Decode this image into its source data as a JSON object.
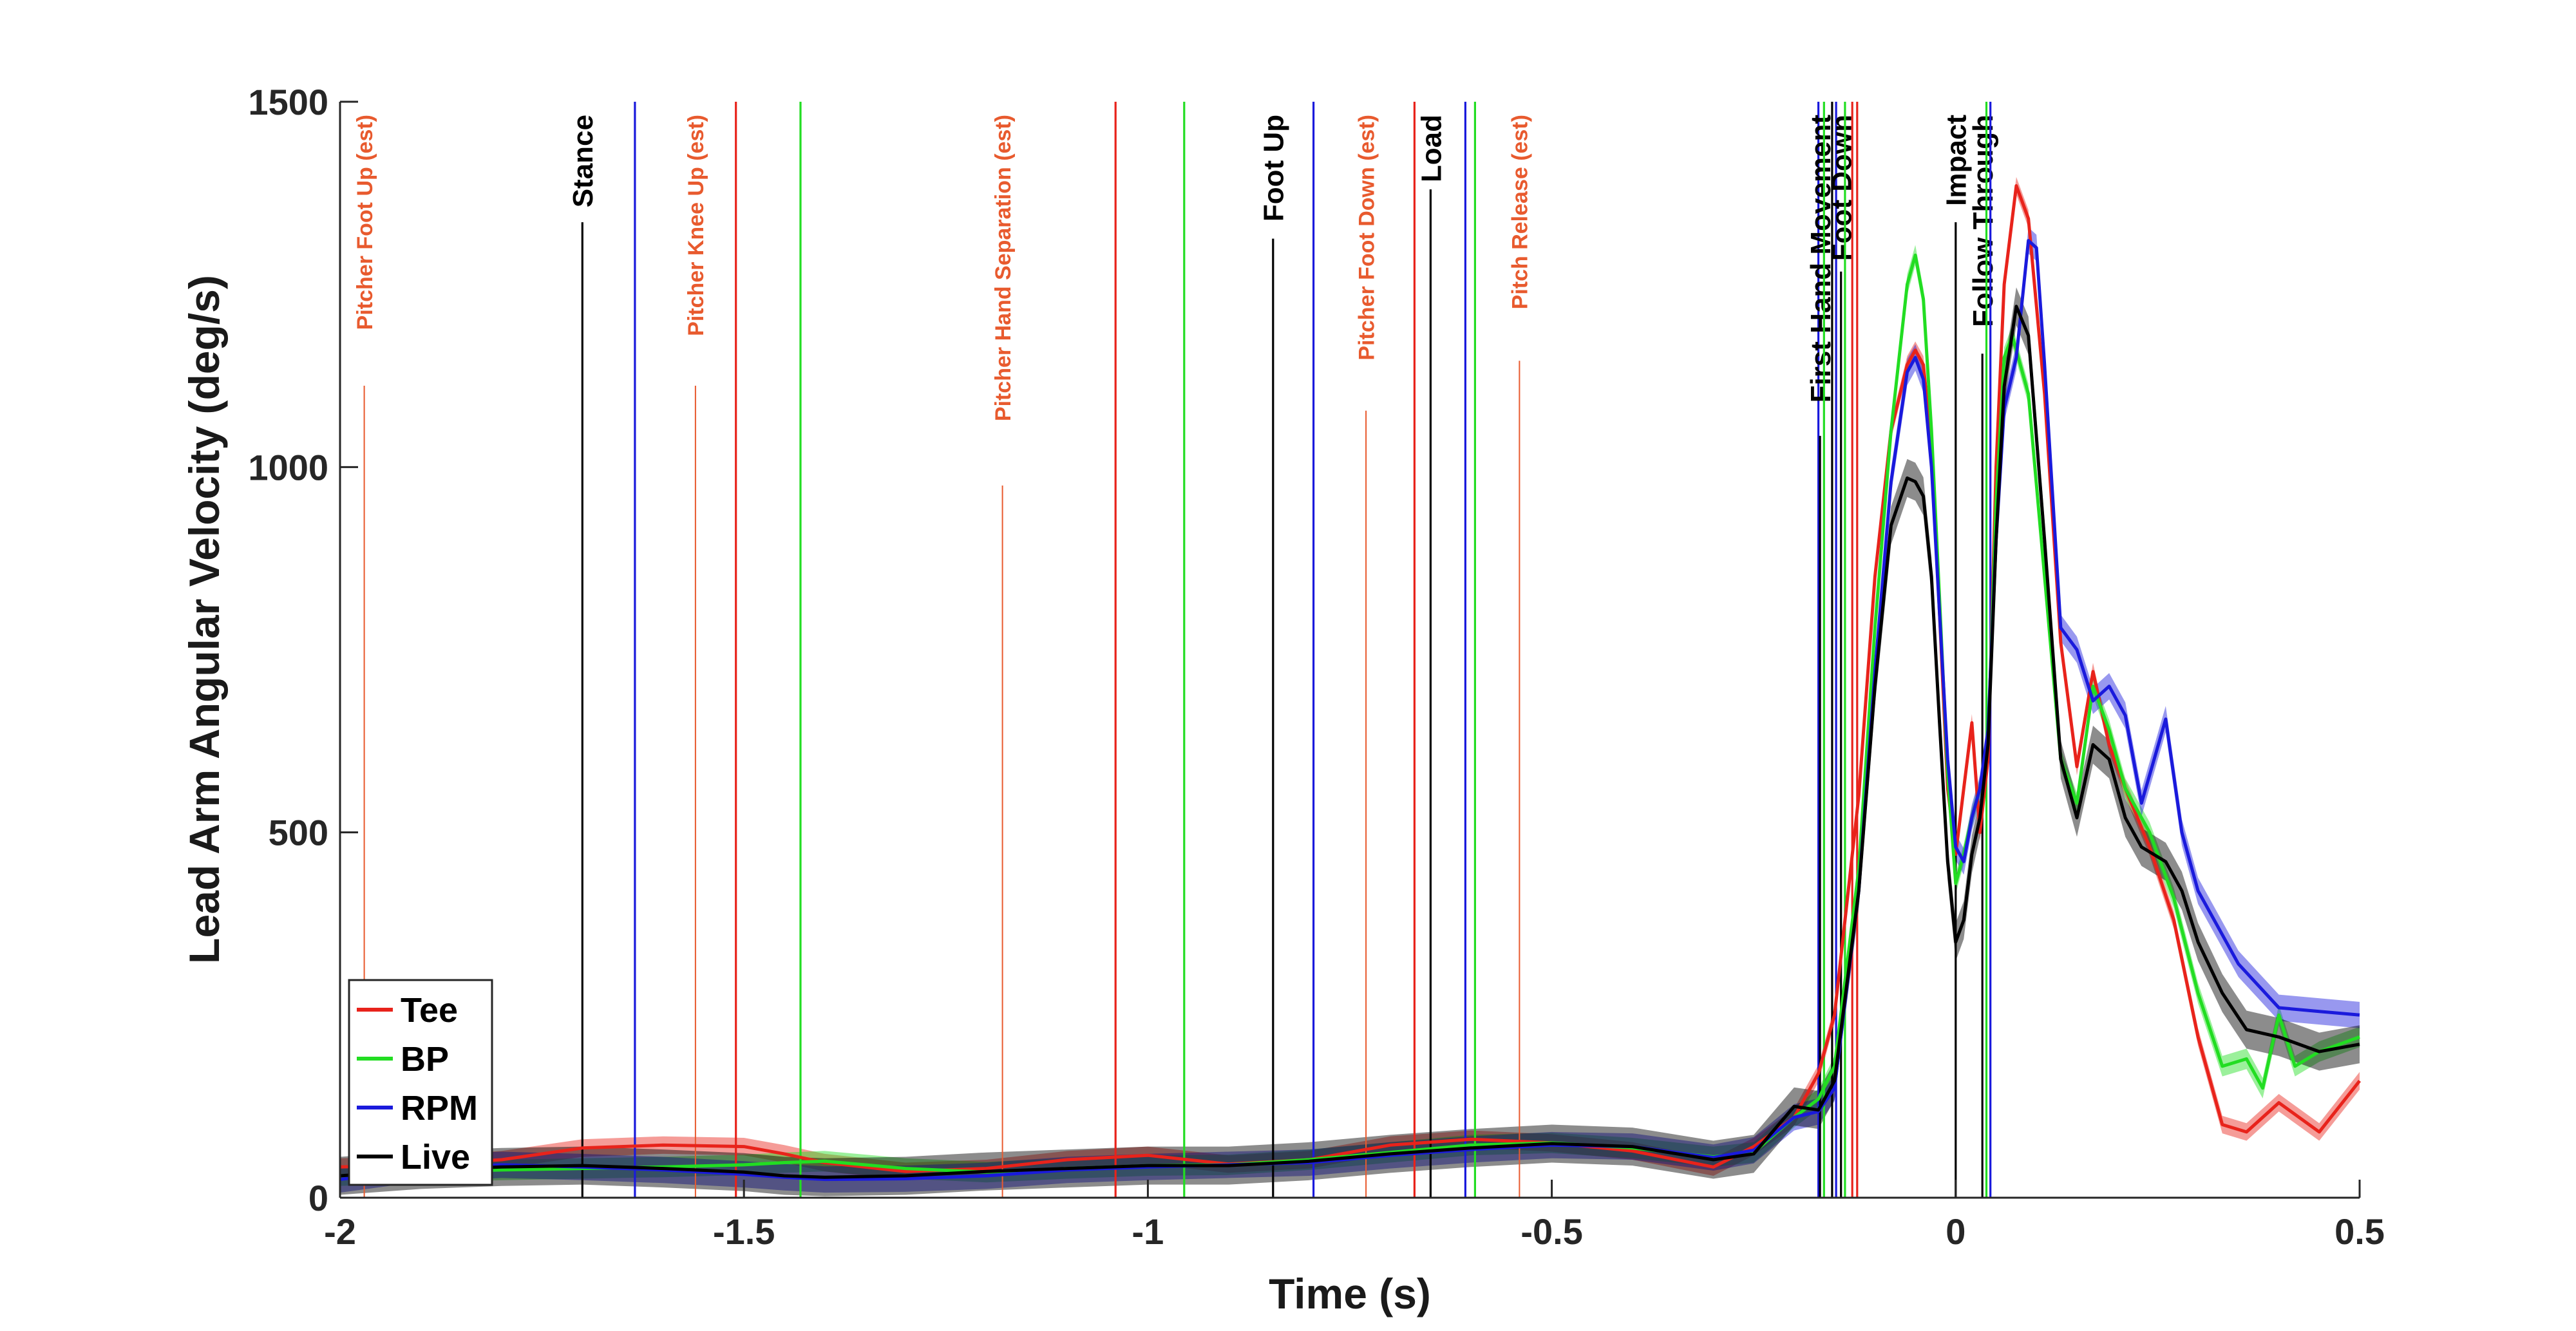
{
  "chart_data": {
    "type": "line",
    "xlabel": "Time (s)",
    "ylabel": "Lead Arm Angular Velocity (deg/s)",
    "xlim": [
      -2,
      0.5
    ],
    "ylim": [
      0,
      1500
    ],
    "xticks": [
      -2,
      -1.5,
      -1,
      -0.5,
      0,
      0.5
    ],
    "xtick_labels": [
      "-2",
      "-1.5",
      "-1",
      "-0.5",
      "0",
      "0.5"
    ],
    "yticks": [
      0,
      500,
      1000,
      1500
    ],
    "ytick_labels": [
      "0",
      "500",
      "1000",
      "1500"
    ],
    "grid": false,
    "legend_position": "bottom-left",
    "series": [
      {
        "name": "Tee",
        "color": "#e8231b",
        "band": 12,
        "points": [
          [
            -2,
            42
          ],
          [
            -1.9,
            45
          ],
          [
            -1.8,
            52
          ],
          [
            -1.7,
            68
          ],
          [
            -1.6,
            72
          ],
          [
            -1.5,
            70
          ],
          [
            -1.45,
            60
          ],
          [
            -1.4,
            48
          ],
          [
            -1.3,
            36
          ],
          [
            -1.2,
            40
          ],
          [
            -1.1,
            52
          ],
          [
            -1.0,
            58
          ],
          [
            -0.9,
            46
          ],
          [
            -0.8,
            52
          ],
          [
            -0.7,
            72
          ],
          [
            -0.6,
            80
          ],
          [
            -0.5,
            75
          ],
          [
            -0.4,
            64
          ],
          [
            -0.3,
            42
          ],
          [
            -0.25,
            70
          ],
          [
            -0.2,
            110
          ],
          [
            -0.17,
            170
          ],
          [
            -0.15,
            250
          ],
          [
            -0.12,
            550
          ],
          [
            -0.1,
            850
          ],
          [
            -0.08,
            1050
          ],
          [
            -0.06,
            1140
          ],
          [
            -0.05,
            1160
          ],
          [
            -0.04,
            1140
          ],
          [
            -0.03,
            1030
          ],
          [
            -0.02,
            800
          ],
          [
            -0.01,
            560
          ],
          [
            0.0,
            470
          ],
          [
            0.01,
            560
          ],
          [
            0.02,
            650
          ],
          [
            0.03,
            500
          ],
          [
            0.04,
            600
          ],
          [
            0.05,
            1000
          ],
          [
            0.06,
            1250
          ],
          [
            0.075,
            1385
          ],
          [
            0.09,
            1340
          ],
          [
            0.11,
            1100
          ],
          [
            0.13,
            760
          ],
          [
            0.15,
            590
          ],
          [
            0.17,
            720
          ],
          [
            0.19,
            620
          ],
          [
            0.21,
            560
          ],
          [
            0.24,
            480
          ],
          [
            0.27,
            380
          ],
          [
            0.3,
            220
          ],
          [
            0.33,
            100
          ],
          [
            0.36,
            90
          ],
          [
            0.4,
            130
          ],
          [
            0.45,
            90
          ],
          [
            0.5,
            160
          ]
        ]
      },
      {
        "name": "BP",
        "color": "#22dd22",
        "band": 14,
        "points": [
          [
            -2,
            30
          ],
          [
            -1.9,
            35
          ],
          [
            -1.8,
            38
          ],
          [
            -1.7,
            40
          ],
          [
            -1.6,
            42
          ],
          [
            -1.5,
            45
          ],
          [
            -1.45,
            48
          ],
          [
            -1.4,
            50
          ],
          [
            -1.3,
            40
          ],
          [
            -1.2,
            35
          ],
          [
            -1.1,
            40
          ],
          [
            -1.0,
            44
          ],
          [
            -0.9,
            45
          ],
          [
            -0.8,
            52
          ],
          [
            -0.7,
            62
          ],
          [
            -0.6,
            72
          ],
          [
            -0.5,
            75
          ],
          [
            -0.4,
            68
          ],
          [
            -0.3,
            56
          ],
          [
            -0.25,
            62
          ],
          [
            -0.2,
            110
          ],
          [
            -0.17,
            135
          ],
          [
            -0.15,
            180
          ],
          [
            -0.12,
            450
          ],
          [
            -0.1,
            780
          ],
          [
            -0.08,
            1050
          ],
          [
            -0.06,
            1250
          ],
          [
            -0.05,
            1290
          ],
          [
            -0.04,
            1230
          ],
          [
            -0.03,
            1050
          ],
          [
            -0.02,
            820
          ],
          [
            -0.01,
            580
          ],
          [
            0.0,
            430
          ],
          [
            0.01,
            470
          ],
          [
            0.02,
            520
          ],
          [
            0.03,
            560
          ],
          [
            0.04,
            620
          ],
          [
            0.05,
            950
          ],
          [
            0.06,
            1150
          ],
          [
            0.07,
            1180
          ],
          [
            0.09,
            1100
          ],
          [
            0.11,
            850
          ],
          [
            0.13,
            600
          ],
          [
            0.15,
            540
          ],
          [
            0.17,
            700
          ],
          [
            0.19,
            640
          ],
          [
            0.21,
            560
          ],
          [
            0.24,
            500
          ],
          [
            0.27,
            410
          ],
          [
            0.3,
            280
          ],
          [
            0.33,
            180
          ],
          [
            0.36,
            190
          ],
          [
            0.38,
            150
          ],
          [
            0.4,
            250
          ],
          [
            0.42,
            180
          ],
          [
            0.45,
            200
          ],
          [
            0.5,
            220
          ]
        ]
      },
      {
        "name": "RPM",
        "color": "#1a1adc",
        "band": 18,
        "points": [
          [
            -2,
            25
          ],
          [
            -1.9,
            40
          ],
          [
            -1.8,
            45
          ],
          [
            -1.7,
            42
          ],
          [
            -1.6,
            38
          ],
          [
            -1.5,
            32
          ],
          [
            -1.45,
            28
          ],
          [
            -1.4,
            25
          ],
          [
            -1.3,
            26
          ],
          [
            -1.2,
            30
          ],
          [
            -1.1,
            38
          ],
          [
            -1.0,
            42
          ],
          [
            -0.9,
            45
          ],
          [
            -0.8,
            48
          ],
          [
            -0.7,
            58
          ],
          [
            -0.6,
            66
          ],
          [
            -0.5,
            72
          ],
          [
            -0.4,
            70
          ],
          [
            -0.3,
            55
          ],
          [
            -0.25,
            65
          ],
          [
            -0.2,
            110
          ],
          [
            -0.17,
            118
          ],
          [
            -0.15,
            150
          ],
          [
            -0.12,
            420
          ],
          [
            -0.1,
            720
          ],
          [
            -0.08,
            980
          ],
          [
            -0.06,
            1130
          ],
          [
            -0.05,
            1150
          ],
          [
            -0.04,
            1120
          ],
          [
            -0.03,
            1000
          ],
          [
            -0.02,
            800
          ],
          [
            -0.01,
            600
          ],
          [
            0.0,
            480
          ],
          [
            0.01,
            460
          ],
          [
            0.02,
            520
          ],
          [
            0.03,
            560
          ],
          [
            0.04,
            640
          ],
          [
            0.05,
            900
          ],
          [
            0.06,
            1080
          ],
          [
            0.075,
            1150
          ],
          [
            0.09,
            1310
          ],
          [
            0.1,
            1300
          ],
          [
            0.11,
            1140
          ],
          [
            0.13,
            780
          ],
          [
            0.15,
            750
          ],
          [
            0.17,
            680
          ],
          [
            0.19,
            700
          ],
          [
            0.21,
            660
          ],
          [
            0.23,
            540
          ],
          [
            0.26,
            655
          ],
          [
            0.28,
            500
          ],
          [
            0.3,
            420
          ],
          [
            0.32,
            380
          ],
          [
            0.35,
            320
          ],
          [
            0.4,
            260
          ],
          [
            0.45,
            255
          ],
          [
            0.5,
            250
          ]
        ]
      },
      {
        "name": "Live",
        "color": "#000000",
        "band": 26,
        "points": [
          [
            -2,
            30
          ],
          [
            -1.9,
            38
          ],
          [
            -1.8,
            42
          ],
          [
            -1.7,
            44
          ],
          [
            -1.6,
            40
          ],
          [
            -1.5,
            35
          ],
          [
            -1.45,
            30
          ],
          [
            -1.4,
            28
          ],
          [
            -1.3,
            30
          ],
          [
            -1.2,
            36
          ],
          [
            -1.1,
            40
          ],
          [
            -1.0,
            44
          ],
          [
            -0.9,
            44
          ],
          [
            -0.8,
            50
          ],
          [
            -0.7,
            60
          ],
          [
            -0.6,
            68
          ],
          [
            -0.5,
            74
          ],
          [
            -0.4,
            70
          ],
          [
            -0.3,
            52
          ],
          [
            -0.25,
            60
          ],
          [
            -0.2,
            125
          ],
          [
            -0.17,
            120
          ],
          [
            -0.15,
            160
          ],
          [
            -0.12,
            420
          ],
          [
            -0.1,
            700
          ],
          [
            -0.08,
            920
          ],
          [
            -0.06,
            985
          ],
          [
            -0.05,
            980
          ],
          [
            -0.04,
            960
          ],
          [
            -0.03,
            850
          ],
          [
            -0.02,
            650
          ],
          [
            -0.01,
            460
          ],
          [
            0.0,
            350
          ],
          [
            0.01,
            380
          ],
          [
            0.02,
            470
          ],
          [
            0.03,
            520
          ],
          [
            0.04,
            620
          ],
          [
            0.05,
            900
          ],
          [
            0.06,
            1110
          ],
          [
            0.075,
            1220
          ],
          [
            0.09,
            1180
          ],
          [
            0.11,
            900
          ],
          [
            0.13,
            600
          ],
          [
            0.15,
            520
          ],
          [
            0.17,
            620
          ],
          [
            0.19,
            600
          ],
          [
            0.21,
            520
          ],
          [
            0.23,
            480
          ],
          [
            0.26,
            460
          ],
          [
            0.28,
            420
          ],
          [
            0.3,
            350
          ],
          [
            0.33,
            280
          ],
          [
            0.36,
            230
          ],
          [
            0.4,
            220
          ],
          [
            0.45,
            200
          ],
          [
            0.5,
            210
          ]
        ]
      }
    ],
    "event_lines": [
      {
        "x": -1.97,
        "color": "#e85a2e",
        "label": "Pitcher Foot Up (est)",
        "style": "orange"
      },
      {
        "x": -1.7,
        "color": "#000000",
        "label": "Stance",
        "style": "black"
      },
      {
        "x": -1.635,
        "color": "#1a1adc",
        "label": "",
        "style": "solid"
      },
      {
        "x": -1.56,
        "color": "#e85a2e",
        "label": "Pitcher Knee Up (est)",
        "style": "orange"
      },
      {
        "x": -1.51,
        "color": "#e8231b",
        "label": "",
        "style": "solid"
      },
      {
        "x": -1.43,
        "color": "#22dd22",
        "label": "",
        "style": "solid"
      },
      {
        "x": -1.18,
        "color": "#e85a2e",
        "label": "Pitcher Hand Separation (est)",
        "style": "orange"
      },
      {
        "x": -1.04,
        "color": "#e8231b",
        "label": "",
        "style": "solid"
      },
      {
        "x": -0.955,
        "color": "#22dd22",
        "label": "",
        "style": "solid"
      },
      {
        "x": -0.845,
        "color": "#000000",
        "label": "Foot Up",
        "style": "black"
      },
      {
        "x": -0.795,
        "color": "#1a1adc",
        "label": "",
        "style": "solid"
      },
      {
        "x": -0.73,
        "color": "#e85a2e",
        "label": "Pitcher Foot Down (est)",
        "style": "orange"
      },
      {
        "x": -0.67,
        "color": "#e8231b",
        "label": "",
        "style": "solid"
      },
      {
        "x": -0.65,
        "color": "#000000",
        "label": "Load",
        "style": "black"
      },
      {
        "x": -0.607,
        "color": "#1a1adc",
        "label": "",
        "style": "solid"
      },
      {
        "x": -0.595,
        "color": "#22dd22",
        "label": "",
        "style": "solid"
      },
      {
        "x": -0.54,
        "color": "#e85a2e",
        "label": "Pitch Release (est)",
        "style": "orange"
      },
      {
        "x": -0.17,
        "color": "#1a1adc",
        "label": "",
        "style": "solid"
      },
      {
        "x": -0.168,
        "color": "#000000",
        "label": "First Hand Movement",
        "style": "black"
      },
      {
        "x": -0.163,
        "color": "#22dd22",
        "label": "",
        "style": "solid"
      },
      {
        "x": -0.153,
        "color": "#000000",
        "label": "",
        "style": "solid"
      },
      {
        "x": -0.148,
        "color": "#1a1adc",
        "label": "",
        "style": "solid"
      },
      {
        "x": -0.142,
        "color": "#000000",
        "label": "Foot Down",
        "style": "black"
      },
      {
        "x": -0.137,
        "color": "#22dd22",
        "label": "",
        "style": "solid"
      },
      {
        "x": -0.128,
        "color": "#e8231b",
        "label": "",
        "style": "solid"
      },
      {
        "x": -0.122,
        "color": "#e8231b",
        "label": "",
        "style": "solid"
      },
      {
        "x": 0.0,
        "color": "#000000",
        "label": "Impact",
        "style": "black"
      },
      {
        "x": 0.033,
        "color": "#000000",
        "label": "Follow Through",
        "style": "black"
      },
      {
        "x": 0.038,
        "color": "#22dd22",
        "label": "",
        "style": "solid"
      },
      {
        "x": 0.043,
        "color": "#1a1adc",
        "label": "",
        "style": "solid"
      }
    ],
    "legend": [
      {
        "label": "Tee",
        "color": "#e8231b"
      },
      {
        "label": "BP",
        "color": "#22dd22"
      },
      {
        "label": "RPM",
        "color": "#1a1adc"
      },
      {
        "label": "Live",
        "color": "#000000"
      }
    ]
  }
}
